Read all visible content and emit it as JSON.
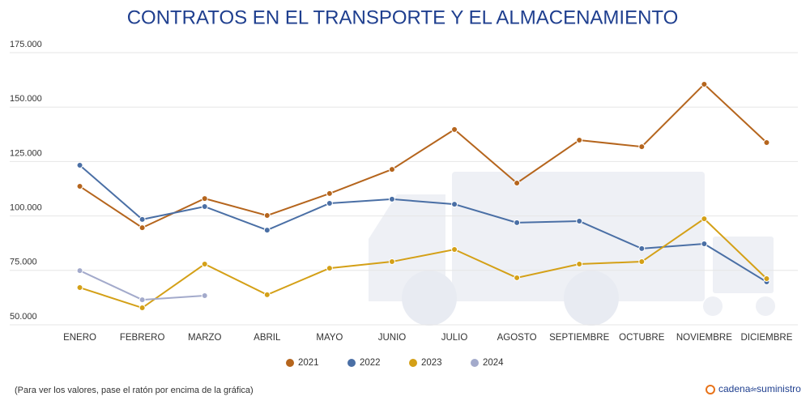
{
  "chart_data": {
    "type": "line",
    "title": "CONTRATOS EN EL TRANSPORTE Y EL ALMACENAMIENTO",
    "categories": [
      "ENERO",
      "FEBRERO",
      "MARZO",
      "ABRIL",
      "MAYO",
      "JUNIO",
      "JULIO",
      "AGOSTO",
      "SEPTIEMBRE",
      "OCTUBRE",
      "NOVIEMBRE",
      "DICIEMBRE"
    ],
    "series": [
      {
        "name": "2021",
        "color": "#b5651d",
        "values": [
          113600,
          94600,
          108000,
          100200,
          110300,
          121400,
          139700,
          115100,
          134800,
          131800,
          160500,
          133700
        ]
      },
      {
        "name": "2022",
        "color": "#4a6fa5",
        "values": [
          123300,
          98400,
          104300,
          93500,
          105800,
          107700,
          105400,
          96900,
          97600,
          85000,
          87200,
          69700
        ]
      },
      {
        "name": "2023",
        "color": "#d4a017",
        "values": [
          67100,
          57800,
          77900,
          63800,
          76000,
          79000,
          84600,
          71600,
          77900,
          79000,
          98700,
          71200
        ]
      },
      {
        "name": "2024",
        "color": "#a3aacb",
        "values": [
          74900,
          61500,
          63400,
          null,
          null,
          null,
          null,
          null,
          null,
          null,
          null,
          null
        ]
      }
    ],
    "ylim": [
      50000,
      175000
    ],
    "yticks": [
      {
        "value": 50000,
        "label": "50.000"
      },
      {
        "value": 75000,
        "label": "75.000"
      },
      {
        "value": 100000,
        "label": "100.000"
      },
      {
        "value": 125000,
        "label": "125.000"
      },
      {
        "value": 150000,
        "label": "150.000"
      },
      {
        "value": 175000,
        "label": "175.000"
      }
    ],
    "grid": true,
    "note": "(Para ver los valores, pase el ratón por encima de la gráfica)",
    "brand": [
      "cadena",
      "de",
      "suministro"
    ]
  }
}
